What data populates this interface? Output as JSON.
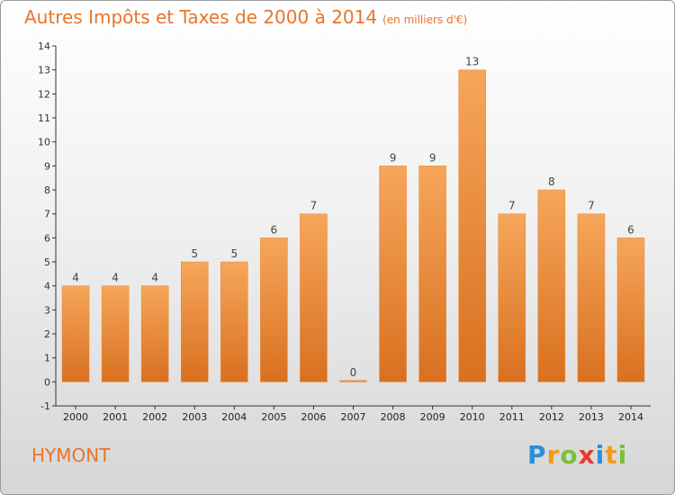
{
  "chart_data": {
    "type": "bar",
    "title": "Autres Impôts et Taxes de 2000 à 2014",
    "subtitle": "(en milliers d'€)",
    "categories": [
      "2000",
      "2001",
      "2002",
      "2003",
      "2004",
      "2005",
      "2006",
      "2007",
      "2008",
      "2009",
      "2010",
      "2011",
      "2012",
      "2013",
      "2014"
    ],
    "values": [
      4,
      4,
      4,
      5,
      5,
      6,
      7,
      0,
      9,
      9,
      13,
      7,
      8,
      7,
      6
    ],
    "data_labels": [
      "4",
      "4",
      "4",
      "5",
      "5",
      "6",
      "7",
      "0",
      "9",
      "9",
      "13",
      "7",
      "8",
      "7",
      "6"
    ],
    "yticks": [
      "-1",
      "0",
      "1",
      "2",
      "3",
      "4",
      "5",
      "6",
      "7",
      "8",
      "9",
      "10",
      "11",
      "12",
      "13",
      "14"
    ],
    "ylim": [
      -1,
      14
    ],
    "grid": false,
    "bar_color": "#f0963e",
    "xlabel": "",
    "ylabel": ""
  },
  "commune": "HYMONT",
  "logo": {
    "letters": [
      "P",
      "r",
      "o",
      "x",
      "i",
      "t",
      "i"
    ],
    "colors": [
      "#2a8fd6",
      "#f39a1e",
      "#7bbf3a",
      "#e63b2e",
      "#2a8fd6",
      "#f39a1e",
      "#7bbf3a"
    ]
  }
}
